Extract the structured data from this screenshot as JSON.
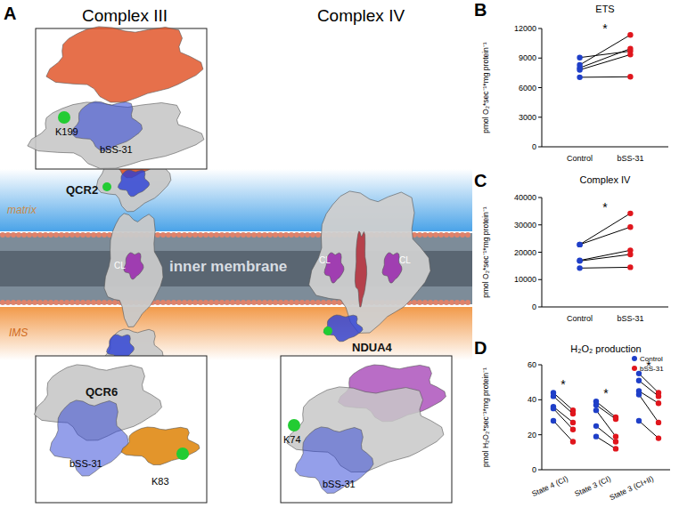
{
  "diagram": {
    "panel": "A",
    "titles": [
      "Complex III",
      "Complex IV"
    ],
    "labels": [
      "matrix",
      "IMS",
      "inner membrane",
      "QCR2",
      "QCR6",
      "NDUA4",
      "CL",
      "CL",
      "CL"
    ],
    "insets": [
      {
        "labels": [
          "K199",
          "bSS-31"
        ]
      },
      {
        "labels": [
          "bSS-31",
          "K83"
        ]
      },
      {
        "labels": [
          "K74",
          "bSS-31"
        ]
      }
    ]
  },
  "chart_data": [
    {
      "type": "paired",
      "panel": "B",
      "title": "ETS",
      "y_label": "pmol O₂*sec⁻¹*mg protein⁻¹",
      "categories": [
        "Control",
        "bSS-31"
      ],
      "colors": [
        "#1f3fc8",
        "#e0161d"
      ],
      "ylim": [
        0,
        12000
      ],
      "yticks": [
        0,
        3000,
        6000,
        9000,
        12000
      ],
      "annotations": [
        "*"
      ],
      "series": [
        {
          "values": [
            9050,
            9700
          ]
        },
        {
          "values": [
            8300,
            11350
          ]
        },
        {
          "values": [
            8000,
            9950
          ]
        },
        {
          "values": [
            7800,
            9350
          ]
        },
        {
          "values": [
            7050,
            7100
          ]
        }
      ]
    },
    {
      "type": "paired",
      "panel": "C",
      "title": "Complex IV",
      "y_label": "pmol O₂*sec⁻¹*mg protein⁻¹",
      "categories": [
        "Control",
        "bSS-31"
      ],
      "colors": [
        "#1f3fc8",
        "#e0161d"
      ],
      "ylim": [
        0,
        40000
      ],
      "yticks": [
        0,
        10000,
        20000,
        30000,
        40000
      ],
      "annotations": [
        "*"
      ],
      "series": [
        {
          "values": [
            22800,
            34200
          ]
        },
        {
          "values": [
            22800,
            29200
          ]
        },
        {
          "values": [
            17000,
            20700
          ]
        },
        {
          "values": [
            16800,
            19200
          ]
        },
        {
          "values": [
            14200,
            14500
          ]
        }
      ]
    },
    {
      "type": "paired",
      "panel": "D",
      "title": "H₂O₂ production",
      "y_label": "pmol H₂O₂*sec⁻¹*mg protein⁻¹",
      "categories": [
        "Control",
        "bSS-31"
      ],
      "colors": [
        "#1f3fc8",
        "#e0161d"
      ],
      "ylim": [
        0,
        60
      ],
      "yticks": [
        0,
        20,
        40,
        60
      ],
      "annotations": [
        "*",
        "*",
        "*"
      ],
      "groups": [
        {
          "label": "State 4 (CI)",
          "series": [
            {
              "values": [
                44,
                34
              ]
            },
            {
              "values": [
                42,
                32
              ]
            },
            {
              "values": [
                36,
                27
              ]
            },
            {
              "values": [
                35,
                23
              ]
            },
            {
              "values": [
                28,
                16
              ]
            }
          ]
        },
        {
          "label": "State 3 (CI)",
          "series": [
            {
              "values": [
                39,
                30
              ]
            },
            {
              "values": [
                37,
                29
              ]
            },
            {
              "values": [
                34,
                19
              ]
            },
            {
              "values": [
                25,
                16
              ]
            },
            {
              "values": [
                19,
                12
              ]
            }
          ]
        },
        {
          "label": "State 3 (CI+II)",
          "series": [
            {
              "values": [
                55,
                44
              ]
            },
            {
              "values": [
                51,
                42
              ]
            },
            {
              "values": [
                45,
                38
              ]
            },
            {
              "values": [
                43,
                27
              ]
            },
            {
              "values": [
                28,
                18
              ]
            }
          ]
        }
      ]
    }
  ]
}
